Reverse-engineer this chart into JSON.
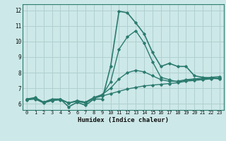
{
  "xlabel": "Humidex (Indice chaleur)",
  "xlim": [
    -0.5,
    23.5
  ],
  "ylim": [
    5.6,
    12.4
  ],
  "yticks": [
    6,
    7,
    8,
    9,
    10,
    11,
    12
  ],
  "xticks": [
    0,
    1,
    2,
    3,
    4,
    5,
    6,
    7,
    8,
    9,
    10,
    11,
    12,
    13,
    14,
    15,
    16,
    17,
    18,
    19,
    20,
    21,
    22,
    23
  ],
  "bg_color": "#cde8e8",
  "line_color": "#2b7b6f",
  "grid_color": "#b0d0d0",
  "lines": [
    [
      6.3,
      6.4,
      6.1,
      6.3,
      6.3,
      5.8,
      6.1,
      5.9,
      6.3,
      6.3,
      8.4,
      11.95,
      11.85,
      11.2,
      10.5,
      9.3,
      8.4,
      8.6,
      8.4,
      8.4,
      7.8,
      7.7,
      7.65,
      7.6
    ],
    [
      6.3,
      6.35,
      6.1,
      6.25,
      6.3,
      6.05,
      6.2,
      6.1,
      6.4,
      6.55,
      7.4,
      9.5,
      10.3,
      10.7,
      9.9,
      8.7,
      7.7,
      7.55,
      7.4,
      7.5,
      7.55,
      7.6,
      7.65,
      7.65
    ],
    [
      6.3,
      6.35,
      6.1,
      6.2,
      6.3,
      6.05,
      6.2,
      6.1,
      6.4,
      6.6,
      7.0,
      7.6,
      8.0,
      8.15,
      8.05,
      7.8,
      7.55,
      7.45,
      7.45,
      7.55,
      7.6,
      7.65,
      7.7,
      7.75
    ],
    [
      6.25,
      6.3,
      6.05,
      6.2,
      6.25,
      6.05,
      6.15,
      6.05,
      6.35,
      6.5,
      6.65,
      6.8,
      6.95,
      7.05,
      7.15,
      7.2,
      7.25,
      7.3,
      7.35,
      7.45,
      7.5,
      7.55,
      7.6,
      7.65
    ]
  ]
}
